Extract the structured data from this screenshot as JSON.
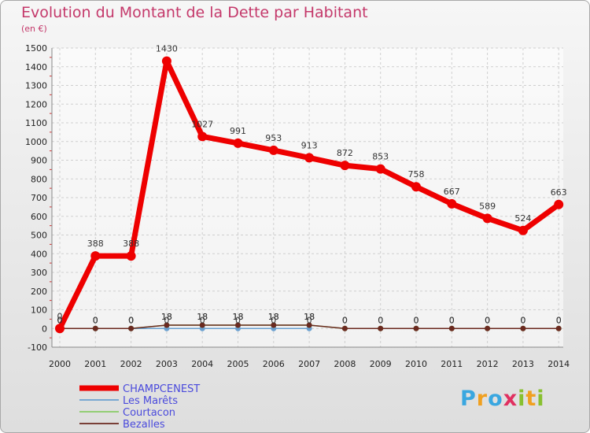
{
  "chart_data": {
    "type": "line",
    "title": "Evolution du Montant de la Dette par Habitant",
    "unit_label": "(en €)",
    "xlabel": "",
    "ylabel": "",
    "x": [
      "2000",
      "2001",
      "2002",
      "2003",
      "2004",
      "2005",
      "2006",
      "2007",
      "2008",
      "2009",
      "2010",
      "2011",
      "2012",
      "2013",
      "2014"
    ],
    "ylim": [
      -100,
      1500
    ],
    "yticks": [
      -100,
      0,
      100,
      200,
      300,
      400,
      500,
      600,
      700,
      800,
      900,
      1000,
      1100,
      1200,
      1300,
      1400,
      1500
    ],
    "grid": true,
    "legend_position": "bottom-left",
    "series": [
      {
        "name": "CHAMPCENEST",
        "color": "#ee0000",
        "values": [
          0,
          388,
          388,
          1430,
          1027,
          991,
          953,
          913,
          872,
          853,
          758,
          667,
          589,
          524,
          663
        ]
      },
      {
        "name": "Les Marêts",
        "color": "#6aa0d0",
        "values": [
          0,
          0,
          0,
          0,
          0,
          0,
          0,
          0,
          null,
          null,
          null,
          null,
          null,
          null,
          null
        ]
      },
      {
        "name": "Courtacon",
        "color": "#88cc66",
        "values": [
          0,
          0,
          0,
          18,
          18,
          18,
          18,
          18,
          0,
          0,
          0,
          0,
          0,
          0,
          0
        ]
      },
      {
        "name": "Bezalles",
        "color": "#6b2a20",
        "values": [
          0,
          0,
          0,
          18,
          18,
          18,
          18,
          18,
          0,
          0,
          0,
          0,
          0,
          0,
          0
        ]
      }
    ]
  },
  "logo": {
    "letters": [
      "P",
      "r",
      "o",
      "x",
      "i",
      "t",
      "i"
    ],
    "colors": [
      "#3aa7e0",
      "#f0a020",
      "#3aa7e0",
      "#e03060",
      "#88c030",
      "#f0a020",
      "#88c030"
    ]
  }
}
